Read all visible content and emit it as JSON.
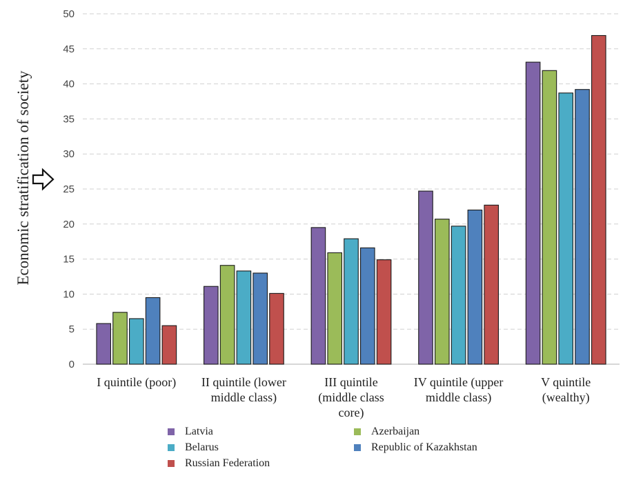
{
  "chart_data": {
    "type": "bar",
    "title": "",
    "ylabel": "Economic stratification of society",
    "xlabel": "",
    "ylim": [
      0,
      50
    ],
    "yticks": [
      0,
      5,
      10,
      15,
      20,
      25,
      30,
      35,
      40,
      45,
      50
    ],
    "grid": "horizontal dashed",
    "legend_position": "bottom",
    "categories": [
      "I quintile (poor)",
      "II quintile (lower middle class)",
      "III quintile (middle class core)",
      "IV quintile (upper middle class)",
      "V quintile (wealthy)"
    ],
    "category_display": [
      "I quintile (poor)",
      "II quintile (lower\nmiddle class)",
      "III quintile\n(middle class\ncore)",
      "IV quintile (upper\nmiddle class)",
      "V quintile\n(wealthy)"
    ],
    "series": [
      {
        "name": "Latvia",
        "color": "#7F64A8",
        "values": [
          5.8,
          11.1,
          19.5,
          24.7,
          43.1
        ]
      },
      {
        "name": "Azerbaijan",
        "color": "#9BBB59",
        "values": [
          7.4,
          14.1,
          15.9,
          20.7,
          41.9
        ]
      },
      {
        "name": "Belarus",
        "color": "#4BACC6",
        "values": [
          6.5,
          13.3,
          17.9,
          19.7,
          38.7
        ]
      },
      {
        "name": "Republic of Kazakhstan",
        "color": "#4F81BD",
        "values": [
          9.5,
          13.0,
          16.6,
          22.0,
          39.2
        ]
      },
      {
        "name": "Russian Federation",
        "color": "#C0504D",
        "values": [
          5.5,
          10.1,
          14.9,
          22.7,
          46.9
        ]
      }
    ]
  },
  "icons": {
    "arrow": "right-arrow-icon"
  }
}
